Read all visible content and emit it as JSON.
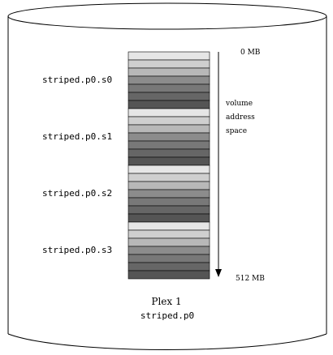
{
  "plex": {
    "title": "Plex 1",
    "name": "striped.p0"
  },
  "subdisks": [
    {
      "label": "striped.p0.s0"
    },
    {
      "label": "striped.p0.s1"
    },
    {
      "label": "striped.p0.s2"
    },
    {
      "label": "striped.p0.s3"
    }
  ],
  "stripe_shades": [
    "#e6e6e6",
    "#cfcfcf",
    "#b8b8b8",
    "#a0a0a0",
    "#8c8c8c",
    "#787878",
    "#666666",
    "#555555"
  ],
  "stripes_per_subdisk": 7,
  "address_axis": {
    "start_label": "0 MB",
    "end_label": "512 MB",
    "caption_lines": [
      "volume",
      "address",
      "space"
    ]
  }
}
